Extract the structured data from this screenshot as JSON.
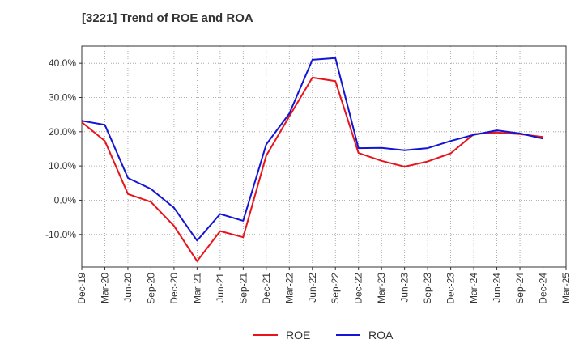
{
  "chart_data": {
    "type": "line",
    "title": "[3221]  Trend of ROE and ROA",
    "xlabel": "",
    "ylabel": "",
    "x_ticks": [
      "Dec-19",
      "Mar-20",
      "Jun-20",
      "Sep-20",
      "Dec-20",
      "Mar-21",
      "Jun-21",
      "Sep-21",
      "Dec-21",
      "Mar-22",
      "Jun-22",
      "Sep-22",
      "Dec-22",
      "Mar-23",
      "Jun-23",
      "Sep-23",
      "Dec-23",
      "Mar-24",
      "Jun-24",
      "Sep-24",
      "Dec-24",
      "Mar-25"
    ],
    "y_ticks": [
      40,
      30,
      20,
      10,
      0,
      -10
    ],
    "y_tick_labels": [
      "40.0%",
      "30.0%",
      "20.0%",
      "10.0%",
      "0.0%",
      "-10.0%"
    ],
    "ylim": [
      -19.5,
      45
    ],
    "grid": true,
    "legend_position": "bottom-center",
    "series": [
      {
        "name": "ROE",
        "color": "#e8141b",
        "x": [
          "Dec-19",
          "Mar-20",
          "Jun-20",
          "Sep-20",
          "Dec-20",
          "Mar-21",
          "Jun-21",
          "Sep-21",
          "Dec-21",
          "Mar-22",
          "Jun-22",
          "Sep-22",
          "Dec-22",
          "Mar-23",
          "Jun-23",
          "Sep-23",
          "Dec-23",
          "Mar-24",
          "Jun-24",
          "Sep-24",
          "Dec-24"
        ],
        "values": [
          22.8,
          17.3,
          1.8,
          -0.5,
          -7.5,
          -17.8,
          -9.0,
          -10.8,
          13.0,
          24.5,
          35.8,
          34.8,
          13.8,
          11.5,
          9.8,
          11.3,
          13.7,
          19.3,
          19.8,
          19.3,
          18.5
        ]
      },
      {
        "name": "ROA",
        "color": "#1414d4",
        "x": [
          "Dec-19",
          "Mar-20",
          "Jun-20",
          "Sep-20",
          "Dec-20",
          "Mar-21",
          "Jun-21",
          "Sep-21",
          "Dec-21",
          "Mar-22",
          "Jun-22",
          "Sep-22",
          "Dec-22",
          "Mar-23",
          "Jun-23",
          "Sep-23",
          "Dec-23",
          "Mar-24",
          "Jun-24",
          "Sep-24",
          "Dec-24"
        ],
        "values": [
          23.2,
          22.0,
          6.5,
          3.3,
          -2.2,
          -11.8,
          -4.0,
          -6.0,
          16.3,
          25.3,
          41.0,
          41.5,
          15.2,
          15.3,
          14.6,
          15.2,
          17.3,
          19.1,
          20.4,
          19.5,
          18.0
        ]
      }
    ]
  }
}
